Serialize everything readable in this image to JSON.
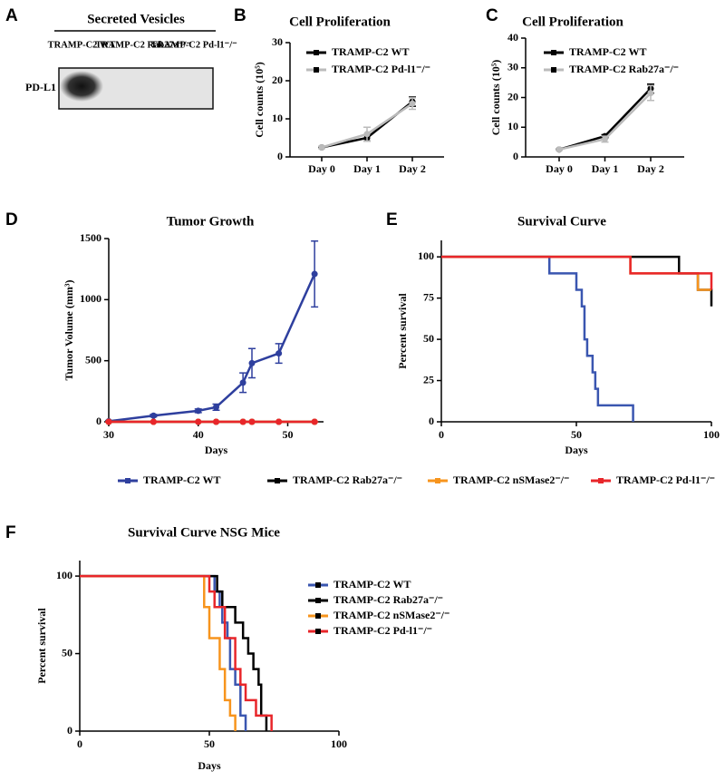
{
  "panel_labels": [
    "A",
    "B",
    "C",
    "D",
    "E",
    "F"
  ],
  "blot": {
    "title": "Secreted Vesicles",
    "columns": [
      "TRAMP-C2 WT",
      "TRAMP-C2 Rab27a⁻/⁻",
      "TRAMP-C2 Pd-l1⁻/⁻"
    ],
    "row": "PD-L1"
  },
  "chart_data": [
    {
      "type": "line",
      "title": "Cell Proliferation",
      "y_label": "Cell counts (10⁵)",
      "categories": [
        "Day 0",
        "Day 1",
        "Day 2"
      ],
      "ylim": [
        0,
        30
      ],
      "yticks": [
        0,
        10,
        20,
        30
      ],
      "series": [
        {
          "name": "TRAMP-C2 WT",
          "color": "#000000",
          "values": [
            2.5,
            5,
            14.5
          ],
          "errors": [
            0.2,
            0.8,
            1.2
          ]
        },
        {
          "name": "TRAMP-C2 Pd-l1⁻/⁻",
          "color": "#bbbbbb",
          "values": [
            2.5,
            6,
            14
          ],
          "errors": [
            0.3,
            1.8,
            1.5
          ]
        }
      ]
    },
    {
      "type": "line",
      "title": "Cell Proliferation",
      "y_label": "Cell counts (10⁵)",
      "categories": [
        "Day 0",
        "Day 1",
        "Day 2"
      ],
      "ylim": [
        0,
        40
      ],
      "yticks": [
        0,
        10,
        20,
        30,
        40
      ],
      "series": [
        {
          "name": "TRAMP-C2 WT",
          "color": "#000000",
          "values": [
            2.5,
            7,
            23
          ],
          "errors": [
            0.2,
            0.5,
            1.5
          ]
        },
        {
          "name": "TRAMP-C2 Rab27a⁻/⁻",
          "color": "#bbbbbb",
          "values": [
            2.5,
            6,
            21.5
          ],
          "errors": [
            0.3,
            1,
            2.5
          ]
        }
      ]
    },
    {
      "type": "line",
      "title": "Tumor Growth",
      "y_label": "Tumor Volume (mm³)",
      "x_label": "Days",
      "x": [
        30,
        35,
        40,
        42,
        45,
        46,
        49,
        53
      ],
      "xlim": [
        30,
        54
      ],
      "xticks": [
        30,
        40,
        50
      ],
      "ylim": [
        0,
        1500
      ],
      "yticks": [
        0,
        500,
        1000,
        1500
      ],
      "series": [
        {
          "name": "TRAMP-C2 WT",
          "color": "#2e3f9e",
          "values": [
            5,
            50,
            90,
            120,
            320,
            480,
            560,
            1210
          ],
          "errors": [
            5,
            10,
            15,
            25,
            80,
            120,
            80,
            270
          ]
        },
        {
          "name": "TRAMP-C2 Rab27a⁻/⁻",
          "color": "#000000",
          "values": [
            0,
            0,
            0,
            0,
            0,
            0,
            0,
            0
          ],
          "errors": [
            0,
            0,
            0,
            0,
            0,
            0,
            0,
            0
          ]
        },
        {
          "name": "TRAMP-C2 nSMase2⁻/⁻",
          "color": "#f7941d",
          "values": [
            0,
            0,
            0,
            0,
            0,
            0,
            0,
            0
          ],
          "errors": [
            0,
            0,
            0,
            0,
            0,
            0,
            0,
            0
          ]
        },
        {
          "name": "TRAMP-C2 Pd-l1⁻/⁻",
          "color": "#e8262a",
          "values": [
            0,
            0,
            0,
            0,
            0,
            0,
            0,
            0
          ],
          "errors": [
            0,
            0,
            0,
            0,
            0,
            0,
            0,
            0
          ]
        }
      ]
    },
    {
      "type": "survival",
      "title": "Survival Curve",
      "y_label": "Percent survival",
      "x_label": "Days",
      "xlim": [
        0,
        100
      ],
      "xticks": [
        0,
        50,
        100
      ],
      "ylim": [
        0,
        110
      ],
      "yticks": [
        0,
        25,
        50,
        75,
        100
      ],
      "series": [
        {
          "color": "#3a56b0",
          "x": [
            0,
            40,
            50,
            52,
            53,
            54,
            56,
            57,
            58,
            71
          ],
          "values": [
            100,
            90,
            80,
            70,
            50,
            40,
            30,
            20,
            10,
            0
          ]
        },
        {
          "color": "#000000",
          "x": [
            0,
            88,
            95,
            100
          ],
          "values": [
            100,
            90,
            80,
            70
          ]
        },
        {
          "color": "#f7941d",
          "x": [
            0,
            70,
            95,
            100
          ],
          "values": [
            100,
            90,
            80,
            80
          ]
        },
        {
          "color": "#e8262a",
          "x": [
            0,
            40,
            70,
            100
          ],
          "values": [
            100,
            100,
            90,
            80
          ]
        }
      ]
    },
    {
      "type": "survival",
      "title": "Survival Curve NSG Mice",
      "y_label": "Percent survival",
      "x_label": "Days",
      "xlim": [
        0,
        100
      ],
      "xticks": [
        0,
        50,
        100
      ],
      "ylim": [
        0,
        110
      ],
      "yticks": [
        0,
        50,
        100
      ],
      "series": [
        {
          "name": "TRAMP-C2 WT",
          "color": "#3a56b0",
          "x": [
            0,
            52,
            54,
            55,
            57,
            58,
            60,
            62,
            64
          ],
          "values": [
            100,
            90,
            80,
            70,
            60,
            40,
            30,
            10,
            0
          ]
        },
        {
          "name": "TRAMP-C2 Rab27a⁻/⁻",
          "color": "#000000",
          "x": [
            0,
            53,
            55,
            60,
            63,
            65,
            67,
            69,
            70,
            72
          ],
          "values": [
            100,
            90,
            80,
            70,
            60,
            50,
            40,
            30,
            10,
            0
          ]
        },
        {
          "name": "TRAMP-C2 nSMase2⁻/⁻",
          "color": "#f7941d",
          "x": [
            0,
            48,
            50,
            54,
            56,
            58,
            60
          ],
          "values": [
            100,
            80,
            60,
            40,
            20,
            10,
            0
          ]
        },
        {
          "name": "TRAMP-C2 Pd-l1⁻/⁻",
          "color": "#e8262a",
          "x": [
            0,
            50,
            52,
            56,
            60,
            62,
            64,
            68,
            74
          ],
          "values": [
            100,
            90,
            80,
            60,
            40,
            30,
            20,
            10,
            0
          ]
        }
      ]
    }
  ]
}
